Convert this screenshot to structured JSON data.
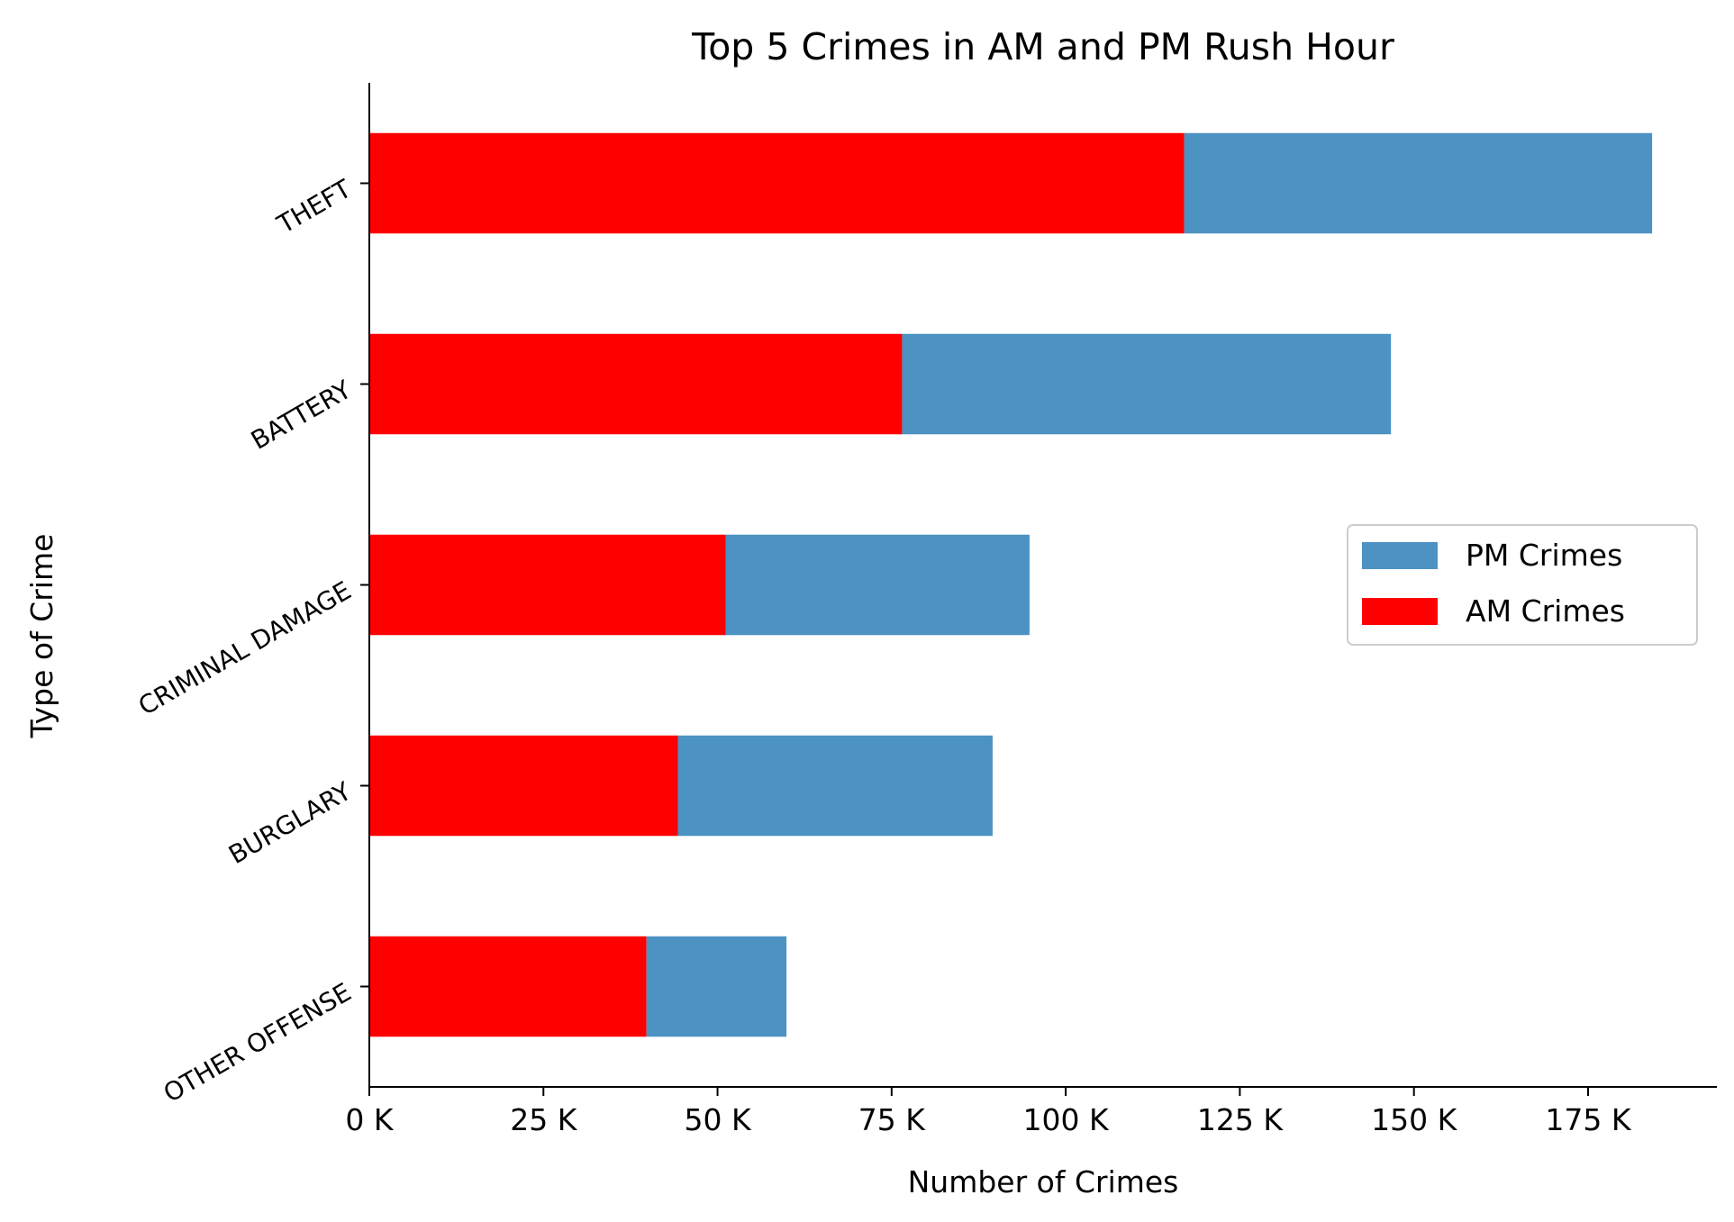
{
  "chart_data": {
    "type": "bar",
    "orientation": "horizontal",
    "stacked": true,
    "title": "Top 5 Crimes in AM and PM Rush Hour",
    "xlabel": "Number of Crimes",
    "ylabel": "Type of Crime",
    "categories": [
      "THEFT",
      "BATTERY",
      "CRIMINAL DAMAGE",
      "BURGLARY",
      "OTHER OFFENSE"
    ],
    "series": [
      {
        "name": "AM Crimes",
        "color": "#ff0000",
        "values": [
          117000,
          76500,
          51200,
          44300,
          39800
        ]
      },
      {
        "name": "PM Crimes",
        "color": "#4c92c3",
        "values": [
          67200,
          70200,
          43600,
          45200,
          20100
        ]
      }
    ],
    "xlim": [
      0,
      193500
    ],
    "xticks": [
      0,
      25000,
      50000,
      75000,
      100000,
      125000,
      150000,
      175000
    ],
    "xtick_labels": [
      "0 K",
      "25 K",
      "50 K",
      "75 K",
      "100 K",
      "125 K",
      "150 K",
      "175 K"
    ],
    "grid": false,
    "legend_position": "center-right",
    "legend_order": [
      "PM Crimes",
      "AM Crimes"
    ]
  }
}
